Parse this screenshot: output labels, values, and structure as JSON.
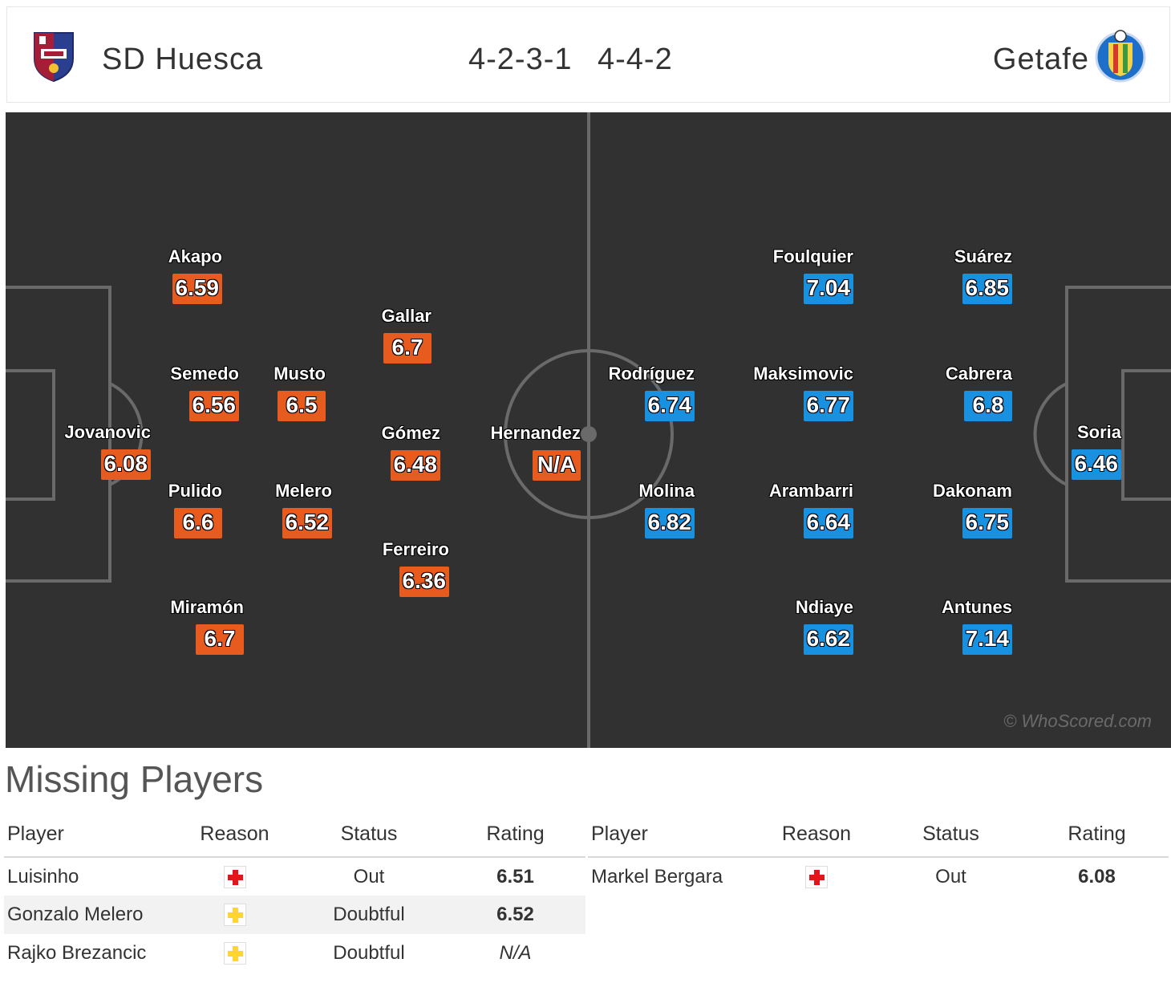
{
  "header": {
    "home_team": "SD Huesca",
    "home_formation": "4-2-3-1",
    "away_formation": "4-4-2",
    "away_team": "Getafe",
    "home_crest_icon": "huesca-crest-icon",
    "away_crest_icon": "getafe-crest-icon"
  },
  "pitch": {
    "watermark": "© WhoScored.com",
    "home_color": "#e85b1e",
    "away_color": "#1891e0"
  },
  "home_players": [
    {
      "name": "Jovanovic",
      "rating": "6.08"
    },
    {
      "name": "Akapo",
      "rating": "6.59"
    },
    {
      "name": "Semedo",
      "rating": "6.56"
    },
    {
      "name": "Pulido",
      "rating": "6.6"
    },
    {
      "name": "Miramón",
      "rating": "6.7"
    },
    {
      "name": "Musto",
      "rating": "6.5"
    },
    {
      "name": "Melero",
      "rating": "6.52"
    },
    {
      "name": "Gallar",
      "rating": "6.7"
    },
    {
      "name": "Gómez",
      "rating": "6.48"
    },
    {
      "name": "Ferreiro",
      "rating": "6.36"
    },
    {
      "name": "Hernandez",
      "rating": "N/A"
    }
  ],
  "away_players": [
    {
      "name": "Rodríguez",
      "rating": "6.74"
    },
    {
      "name": "Molina",
      "rating": "6.82"
    },
    {
      "name": "Foulquier",
      "rating": "7.04"
    },
    {
      "name": "Maksimovic",
      "rating": "6.77"
    },
    {
      "name": "Arambarri",
      "rating": "6.64"
    },
    {
      "name": "Ndiaye",
      "rating": "6.62"
    },
    {
      "name": "Suárez",
      "rating": "6.85"
    },
    {
      "name": "Cabrera",
      "rating": "6.8"
    },
    {
      "name": "Dakonam",
      "rating": "6.75"
    },
    {
      "name": "Antunes",
      "rating": "7.14"
    },
    {
      "name": "Soria",
      "rating": "6.46"
    }
  ],
  "missing": {
    "title": "Missing Players",
    "columns": {
      "player": "Player",
      "reason": "Reason",
      "status": "Status",
      "rating": "Rating"
    },
    "home": [
      {
        "player": "Luisinho",
        "reason": "injury",
        "status": "Out",
        "rating": "6.51"
      },
      {
        "player": "Gonzalo Melero",
        "reason": "doubtful",
        "status": "Doubtful",
        "rating": "6.52"
      },
      {
        "player": "Rajko Brezancic",
        "reason": "doubtful",
        "status": "Doubtful",
        "rating": "N/A"
      }
    ],
    "away": [
      {
        "player": "Markel Bergara",
        "reason": "injury",
        "status": "Out",
        "rating": "6.08"
      }
    ]
  }
}
